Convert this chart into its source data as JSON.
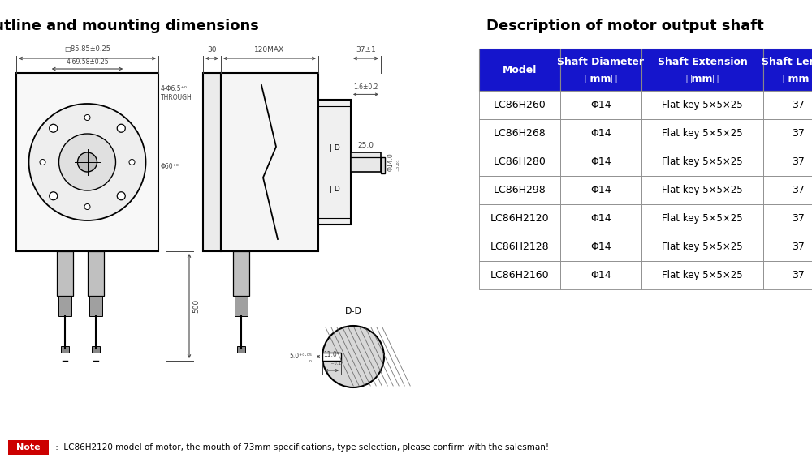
{
  "title_left": "Outline and mounting dimensions",
  "title_right": "Description of motor output shaft",
  "table_header_row1": [
    "Model",
    "Shaft Diameter",
    "Shaft Extension",
    "Shaft Length"
  ],
  "table_header_row2": [
    "",
    "（mm）",
    "（mm）",
    "（mm）"
  ],
  "table_rows": [
    [
      "LC86H260",
      "Φ14",
      "Flat key 5×5×25",
      "37"
    ],
    [
      "LC86H268",
      "Φ14",
      "Flat key 5×5×25",
      "37"
    ],
    [
      "LC86H280",
      "Φ14",
      "Flat key 5×5×25",
      "37"
    ],
    [
      "LC86H298",
      "Φ14",
      "Flat key 5×5×25",
      "37"
    ],
    [
      "LC86H2120",
      "Φ14",
      "Flat key 5×5×25",
      "37"
    ],
    [
      "LC86H2128",
      "Φ14",
      "Flat key 5×5×25",
      "37"
    ],
    [
      "LC86H2160",
      "Φ14",
      "Flat key 5×5×25",
      "37"
    ]
  ],
  "header_bg": "#1515CC",
  "header_text_color": "#FFFFFF",
  "row_bg_white": "#FFFFFF",
  "row_text_color": "#000000",
  "table_border": "#888888",
  "note_bg": "#CC0000",
  "note_text": "Note",
  "note_detail": " :  LC86H2120 model of motor, the mouth of 73mm specifications, type selection, please confirm with the salesman!",
  "bg_color": "#FFFFFF",
  "line_color": "#000000",
  "dim_color": "#444444"
}
